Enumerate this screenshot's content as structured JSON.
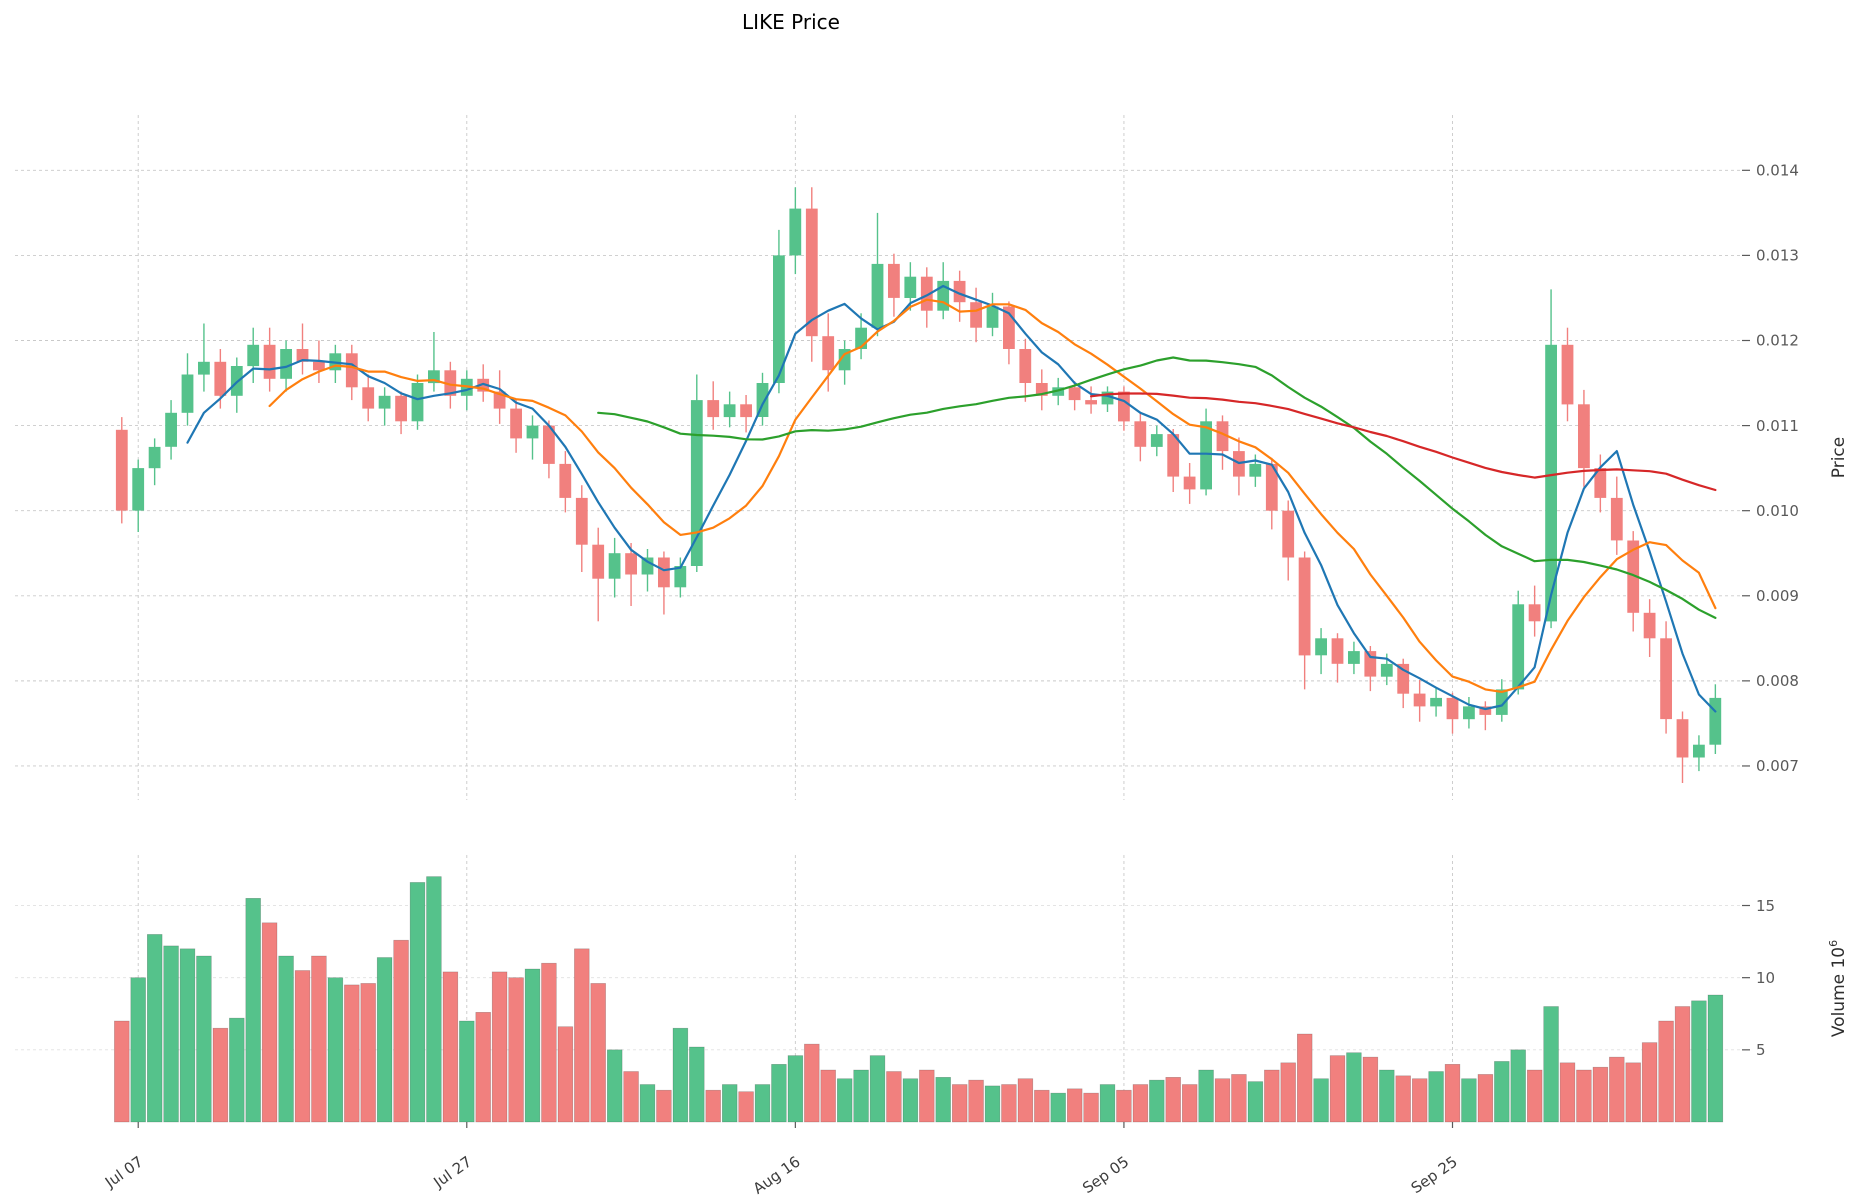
{
  "title": "LIKE Price",
  "colors": {
    "up": "#55c28b",
    "down": "#f1807e",
    "grid": "#c9c9c9",
    "tick_text": "#595959",
    "title_text": "#000000",
    "ma_blue": "#1f77b4",
    "ma_orange": "#ff7f0e",
    "ma_green": "#2ca02c",
    "ma_red": "#d62728"
  },
  "price_axis": {
    "label": "Price",
    "ticks": [
      "0.007",
      "0.008",
      "0.009",
      "0.010",
      "0.011",
      "0.012",
      "0.013",
      "0.014"
    ]
  },
  "volume_axis": {
    "label_text": "Volume",
    "multiplier_base": "10",
    "multiplier_exp": "6",
    "ticks": [
      "5",
      "10",
      "15"
    ]
  },
  "chart_data": {
    "type": "candlestick",
    "title": "LIKE Price",
    "ylabel": "Price",
    "ylabel2": "Volume 10^6",
    "price_range": [
      0.0066,
      0.01465
    ],
    "volume_range": [
      0,
      18.5
    ],
    "grid": "dashed",
    "legend": "none",
    "y_axis_position": "right",
    "x_tick_rotation_deg": 35,
    "x_ticks": [
      {
        "label": "Jul 07",
        "index": 1
      },
      {
        "label": "Jul 27",
        "index": 21
      },
      {
        "label": "Aug 16",
        "index": 41
      },
      {
        "label": "Sep 05",
        "index": 61
      },
      {
        "label": "Sep 25",
        "index": 81
      }
    ],
    "moving_averages": [
      {
        "name": "MA5",
        "window": 5,
        "color": "#1f77b4"
      },
      {
        "name": "MA10",
        "window": 10,
        "color": "#ff7f0e"
      },
      {
        "name": "MA30",
        "window": 30,
        "color": "#2ca02c"
      },
      {
        "name": "MA60",
        "window": 60,
        "color": "#d62728"
      }
    ],
    "columns": [
      "date",
      "open",
      "high",
      "low",
      "close",
      "volume_millions"
    ],
    "candles": [
      [
        "Jul 06",
        0.01095,
        0.0111,
        0.00985,
        0.01,
        7.0
      ],
      [
        "Jul 07",
        0.01,
        0.0106,
        0.00975,
        0.0105,
        10.0
      ],
      [
        "Jul 08",
        0.0105,
        0.01085,
        0.0103,
        0.01075,
        13.0
      ],
      [
        "Jul 09",
        0.01075,
        0.0113,
        0.0106,
        0.01115,
        12.2
      ],
      [
        "Jul 10",
        0.01115,
        0.01185,
        0.011,
        0.0116,
        12.0
      ],
      [
        "Jul 11",
        0.0116,
        0.0122,
        0.0114,
        0.01175,
        11.5
      ],
      [
        "Jul 12",
        0.01175,
        0.0119,
        0.0112,
        0.01135,
        6.5
      ],
      [
        "Jul 13",
        0.01135,
        0.0118,
        0.01115,
        0.0117,
        7.2
      ],
      [
        "Jul 14",
        0.0117,
        0.01215,
        0.0115,
        0.01195,
        15.5
      ],
      [
        "Jul 15",
        0.01195,
        0.01215,
        0.0114,
        0.01155,
        13.8
      ],
      [
        "Jul 16",
        0.01155,
        0.012,
        0.0114,
        0.0119,
        11.5
      ],
      [
        "Jul 17",
        0.0119,
        0.0122,
        0.0116,
        0.01175,
        10.5
      ],
      [
        "Jul 18",
        0.01175,
        0.012,
        0.0115,
        0.01165,
        11.5
      ],
      [
        "Jul 19",
        0.01165,
        0.01195,
        0.0115,
        0.01185,
        10.0
      ],
      [
        "Jul 20",
        0.01185,
        0.01195,
        0.0113,
        0.01145,
        9.5
      ],
      [
        "Jul 21",
        0.01145,
        0.0116,
        0.01105,
        0.0112,
        9.6
      ],
      [
        "Jul 22",
        0.0112,
        0.01145,
        0.011,
        0.01135,
        11.4
      ],
      [
        "Jul 23",
        0.01135,
        0.0114,
        0.0109,
        0.01105,
        12.6
      ],
      [
        "Jul 24",
        0.01105,
        0.0116,
        0.01095,
        0.0115,
        16.6
      ],
      [
        "Jul 25",
        0.0115,
        0.0121,
        0.0114,
        0.01165,
        17.0
      ],
      [
        "Jul 26",
        0.01165,
        0.01175,
        0.0112,
        0.01135,
        10.4
      ],
      [
        "Jul 27",
        0.01135,
        0.01165,
        0.01118,
        0.01155,
        7.0
      ],
      [
        "Jul 28",
        0.01155,
        0.01172,
        0.01128,
        0.0114,
        7.6
      ],
      [
        "Jul 29",
        0.0114,
        0.01165,
        0.01102,
        0.0112,
        10.4
      ],
      [
        "Jul 30",
        0.0112,
        0.0113,
        0.01068,
        0.01085,
        10.0
      ],
      [
        "Jul 31",
        0.01085,
        0.01112,
        0.0106,
        0.011,
        10.6
      ],
      [
        "Aug 01",
        0.011,
        0.01106,
        0.01038,
        0.01055,
        11.0
      ],
      [
        "Aug 02",
        0.01055,
        0.0107,
        0.00998,
        0.01015,
        6.6
      ],
      [
        "Aug 03",
        0.01015,
        0.0103,
        0.00928,
        0.0096,
        12.0
      ],
      [
        "Aug 04",
        0.0096,
        0.0098,
        0.0087,
        0.0092,
        9.6
      ],
      [
        "Aug 05",
        0.0092,
        0.00968,
        0.00898,
        0.0095,
        5.0
      ],
      [
        "Aug 06",
        0.0095,
        0.00962,
        0.00888,
        0.00925,
        3.5
      ],
      [
        "Aug 07",
        0.00925,
        0.00955,
        0.00905,
        0.00945,
        2.6
      ],
      [
        "Aug 08",
        0.00945,
        0.00952,
        0.00878,
        0.0091,
        2.2
      ],
      [
        "Aug 09",
        0.0091,
        0.00945,
        0.00898,
        0.00935,
        6.5
      ],
      [
        "Aug 10",
        0.00935,
        0.0116,
        0.00928,
        0.0113,
        5.2
      ],
      [
        "Aug 11",
        0.0113,
        0.01152,
        0.01095,
        0.0111,
        2.2
      ],
      [
        "Aug 12",
        0.0111,
        0.0114,
        0.01098,
        0.01125,
        2.6
      ],
      [
        "Aug 13",
        0.01125,
        0.01136,
        0.01092,
        0.0111,
        2.1
      ],
      [
        "Aug 14",
        0.0111,
        0.01162,
        0.011,
        0.0115,
        2.6
      ],
      [
        "Aug 15",
        0.0115,
        0.0133,
        0.01138,
        0.013,
        4.0
      ],
      [
        "Aug 16",
        0.013,
        0.0138,
        0.01278,
        0.01355,
        4.6
      ],
      [
        "Aug 17",
        0.01355,
        0.0138,
        0.01175,
        0.01205,
        5.4
      ],
      [
        "Aug 18",
        0.01205,
        0.01232,
        0.0114,
        0.01165,
        3.6
      ],
      [
        "Aug 19",
        0.01165,
        0.012,
        0.01148,
        0.0119,
        3.0
      ],
      [
        "Aug 20",
        0.0119,
        0.01232,
        0.01178,
        0.01215,
        3.6
      ],
      [
        "Aug 21",
        0.01215,
        0.0135,
        0.01205,
        0.0129,
        4.6
      ],
      [
        "Aug 22",
        0.0129,
        0.01302,
        0.01228,
        0.0125,
        3.5
      ],
      [
        "Aug 23",
        0.0125,
        0.01292,
        0.01235,
        0.01275,
        3.0
      ],
      [
        "Aug 24",
        0.01275,
        0.01286,
        0.01215,
        0.01235,
        3.6
      ],
      [
        "Aug 25",
        0.01235,
        0.01292,
        0.01225,
        0.0127,
        3.1
      ],
      [
        "Aug 26",
        0.0127,
        0.01282,
        0.01222,
        0.01245,
        2.6
      ],
      [
        "Aug 27",
        0.01245,
        0.01262,
        0.01198,
        0.01215,
        2.9
      ],
      [
        "Aug 28",
        0.01215,
        0.01256,
        0.01205,
        0.0124,
        2.5
      ],
      [
        "Aug 29",
        0.0124,
        0.01246,
        0.01172,
        0.0119,
        2.6
      ],
      [
        "Aug 30",
        0.0119,
        0.01202,
        0.01128,
        0.0115,
        3.0
      ],
      [
        "Aug 31",
        0.0115,
        0.01166,
        0.01118,
        0.01135,
        2.2
      ],
      [
        "Sep 01",
        0.01135,
        0.01156,
        0.01124,
        0.01145,
        2.0
      ],
      [
        "Sep 02",
        0.01145,
        0.01152,
        0.01118,
        0.0113,
        2.3
      ],
      [
        "Sep 03",
        0.0113,
        0.01146,
        0.01114,
        0.01125,
        2.0
      ],
      [
        "Sep 04",
        0.01125,
        0.01146,
        0.01116,
        0.0114,
        2.6
      ],
      [
        "Sep 05",
        0.0114,
        0.01146,
        0.01094,
        0.01105,
        2.2
      ],
      [
        "Sep 06",
        0.01105,
        0.01116,
        0.01058,
        0.01075,
        2.6
      ],
      [
        "Sep 07",
        0.01075,
        0.011,
        0.01064,
        0.0109,
        2.9
      ],
      [
        "Sep 08",
        0.0109,
        0.01096,
        0.01022,
        0.0104,
        3.1
      ],
      [
        "Sep 09",
        0.0104,
        0.01056,
        0.01008,
        0.01025,
        2.6
      ],
      [
        "Sep 10",
        0.01025,
        0.0112,
        0.01018,
        0.01105,
        3.6
      ],
      [
        "Sep 11",
        0.01105,
        0.01112,
        0.01048,
        0.0107,
        3.0
      ],
      [
        "Sep 12",
        0.0107,
        0.01086,
        0.01018,
        0.0104,
        3.3
      ],
      [
        "Sep 13",
        0.0104,
        0.01066,
        0.01028,
        0.01055,
        2.8
      ],
      [
        "Sep 14",
        0.01055,
        0.01062,
        0.00978,
        0.01,
        3.6
      ],
      [
        "Sep 15",
        0.01,
        0.01012,
        0.00918,
        0.00945,
        4.1
      ],
      [
        "Sep 16",
        0.00945,
        0.00952,
        0.0079,
        0.0083,
        6.1
      ],
      [
        "Sep 17",
        0.0083,
        0.00862,
        0.00808,
        0.0085,
        3.0
      ],
      [
        "Sep 18",
        0.0085,
        0.00856,
        0.00798,
        0.0082,
        4.6
      ],
      [
        "Sep 19",
        0.0082,
        0.00846,
        0.00808,
        0.00835,
        4.8
      ],
      [
        "Sep 20",
        0.00835,
        0.00841,
        0.00788,
        0.00805,
        4.5
      ],
      [
        "Sep 21",
        0.00805,
        0.00832,
        0.00795,
        0.0082,
        3.6
      ],
      [
        "Sep 22",
        0.0082,
        0.00826,
        0.00768,
        0.00785,
        3.2
      ],
      [
        "Sep 23",
        0.00785,
        0.00801,
        0.00752,
        0.0077,
        3.0
      ],
      [
        "Sep 24",
        0.0077,
        0.00792,
        0.00758,
        0.0078,
        3.5
      ],
      [
        "Sep 25",
        0.0078,
        0.00786,
        0.00738,
        0.00755,
        4.0
      ],
      [
        "Sep 26",
        0.00755,
        0.00781,
        0.00744,
        0.0077,
        3.0
      ],
      [
        "Sep 27",
        0.0077,
        0.00776,
        0.00742,
        0.0076,
        3.3
      ],
      [
        "Sep 28",
        0.0076,
        0.00802,
        0.00752,
        0.0079,
        4.2
      ],
      [
        "Sep 29",
        0.0079,
        0.00906,
        0.00784,
        0.0089,
        5.0
      ],
      [
        "Sep 30",
        0.0089,
        0.00912,
        0.00852,
        0.0087,
        3.6
      ],
      [
        "Oct 01",
        0.0087,
        0.0126,
        0.00862,
        0.01195,
        8.0
      ],
      [
        "Oct 02",
        0.01195,
        0.01215,
        0.01105,
        0.01125,
        4.1
      ],
      [
        "Oct 03",
        0.01125,
        0.01142,
        0.01028,
        0.0105,
        3.6
      ],
      [
        "Oct 04",
        0.0105,
        0.01066,
        0.00998,
        0.01015,
        3.8
      ],
      [
        "Oct 05",
        0.01015,
        0.0104,
        0.00948,
        0.00965,
        4.5
      ],
      [
        "Oct 06",
        0.00965,
        0.00976,
        0.00858,
        0.0088,
        4.1
      ],
      [
        "Oct 07",
        0.0088,
        0.00896,
        0.00828,
        0.0085,
        5.5
      ],
      [
        "Oct 08",
        0.0085,
        0.0087,
        0.00738,
        0.00755,
        7.0
      ],
      [
        "Oct 09",
        0.00755,
        0.00764,
        0.0068,
        0.0071,
        8.0
      ],
      [
        "Oct 10",
        0.0071,
        0.00736,
        0.00694,
        0.00725,
        8.4
      ],
      [
        "Oct 11",
        0.00725,
        0.00796,
        0.00714,
        0.0078,
        8.8
      ]
    ]
  }
}
